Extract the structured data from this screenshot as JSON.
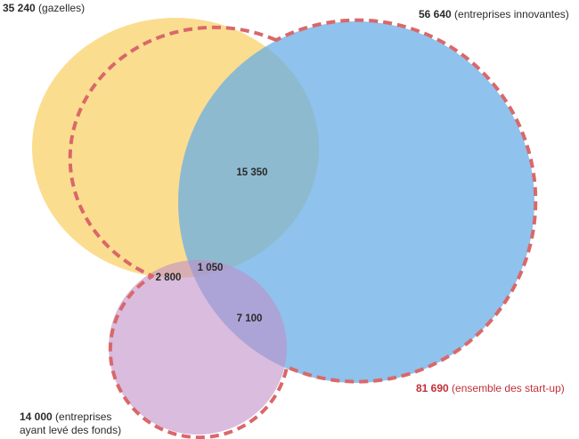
{
  "colors": {
    "gazelles": "#f8c84a",
    "innovantes": "#6aaee6",
    "levee": "#c090c8",
    "outline": "#d9686a",
    "total_text": "#c0303a"
  },
  "labels": {
    "gazelles": {
      "value": "35 240",
      "text": "(gazelles)"
    },
    "innovantes": {
      "value": "56 640",
      "text": "(entreprises innovantes)"
    },
    "total": {
      "value": "81 690",
      "text": "(ensemble des start-up)"
    },
    "levee": {
      "value": "14 000",
      "text": "(entreprises",
      "text2": "ayant levé des fonds)"
    }
  },
  "intersections": {
    "gazelles_innovantes": "15 350",
    "all_three": "1 050",
    "gazelles_levee": "2 800",
    "innovantes_levee": "7 100"
  }
}
